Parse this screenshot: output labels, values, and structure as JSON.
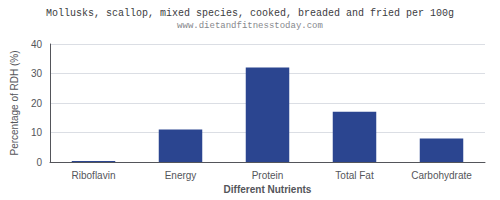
{
  "chart_data": {
    "type": "bar",
    "title": "Mollusks, scallop, mixed species, cooked, breaded and fried per 100g",
    "subtitle": "www.dietandfitnesstoday.com",
    "xlabel": "Different Nutrients",
    "ylabel": "Percentage of RDH (%)",
    "categories": [
      "Riboflavin",
      "Energy",
      "Protein",
      "Total Fat",
      "Carbohydrate"
    ],
    "values": [
      0.3,
      11,
      32,
      17,
      8
    ],
    "color": "#2b4590",
    "ylim": [
      0,
      40
    ],
    "yticks": [
      0,
      10,
      20,
      30,
      40
    ],
    "grid": true
  }
}
